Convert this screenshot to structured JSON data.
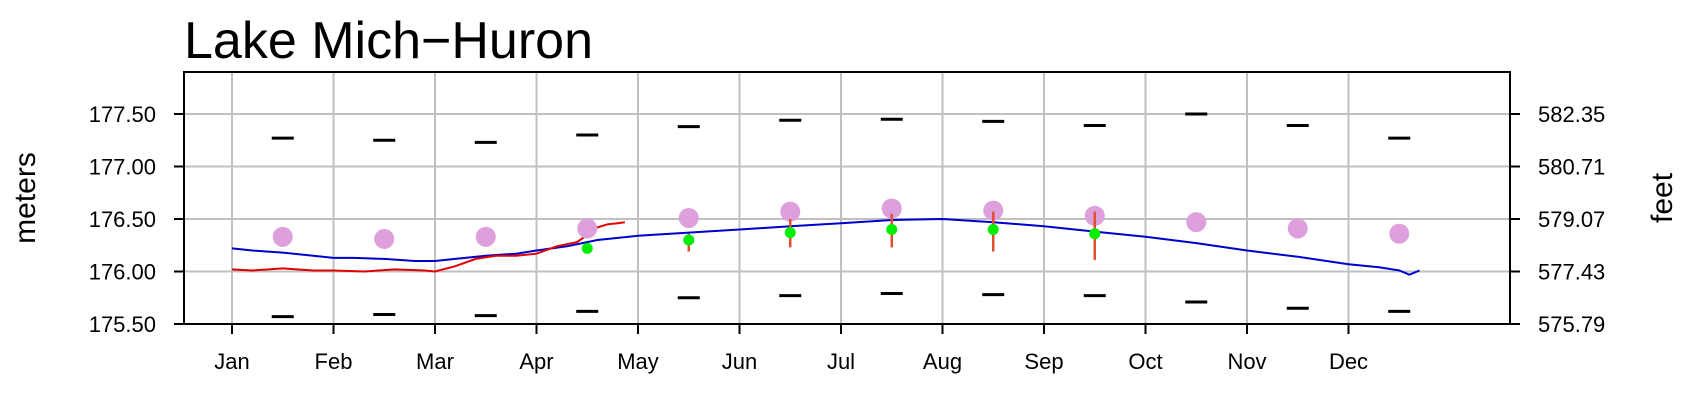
{
  "chart_data": {
    "type": "line",
    "title": "Lake Mich−Huron",
    "ylabel_left": "meters",
    "ylabel_right": "feet",
    "categories": [
      "Jan",
      "Feb",
      "Mar",
      "Apr",
      "May",
      "Jun",
      "Jul",
      "Aug",
      "Sep",
      "Oct",
      "Nov",
      "Dec"
    ],
    "ylim": [
      175.5,
      177.9
    ],
    "yticks_left": [
      "177.50",
      "177.00",
      "176.50",
      "176.00",
      "175.50"
    ],
    "yticks_right": [
      "582.35",
      "580.71",
      "579.07",
      "577.43",
      "575.79"
    ],
    "ytick_values": [
      177.5,
      177.0,
      176.5,
      176.0,
      175.5
    ],
    "grid": true,
    "colors": {
      "current_year": "#e00000",
      "previous_year": "#0000cc",
      "long_term_average": "#dda0dd",
      "forecast_point": "#00ee00",
      "forecast_range": "#e05030",
      "record": "#000000"
    },
    "series": [
      {
        "id": "previous_year",
        "x": [
          0,
          0.2,
          0.5,
          0.8,
          1.0,
          1.2,
          1.5,
          1.8,
          2.0,
          2.2,
          2.5,
          2.8,
          3.0,
          3.3,
          3.6,
          4.0,
          4.5,
          5.0,
          5.5,
          6.0,
          6.5,
          7.0,
          7.5,
          8.0,
          8.5,
          9.0,
          9.5,
          10.0,
          10.5,
          11.0,
          11.3,
          11.5,
          11.6,
          11.7
        ],
        "y": [
          176.22,
          176.2,
          176.18,
          176.15,
          176.13,
          176.13,
          176.12,
          176.1,
          176.1,
          176.12,
          176.15,
          176.17,
          176.2,
          176.24,
          176.3,
          176.34,
          176.37,
          176.4,
          176.43,
          176.46,
          176.49,
          176.5,
          176.47,
          176.43,
          176.38,
          176.33,
          176.27,
          176.2,
          176.14,
          176.07,
          176.04,
          176.01,
          175.97,
          176.01
        ]
      },
      {
        "id": "current_year",
        "x": [
          0,
          0.2,
          0.5,
          0.8,
          1.0,
          1.3,
          1.6,
          1.9,
          2.0,
          2.2,
          2.4,
          2.6,
          2.8,
          3.0,
          3.2,
          3.4,
          3.5,
          3.6,
          3.7,
          3.8,
          3.87
        ],
        "y": [
          176.02,
          176.01,
          176.03,
          176.01,
          176.01,
          176.0,
          176.02,
          176.01,
          176.0,
          176.05,
          176.12,
          176.15,
          176.15,
          176.17,
          176.24,
          176.28,
          176.35,
          176.42,
          176.45,
          176.46,
          176.47
        ]
      }
    ],
    "long_term_average": {
      "x": [
        0.5,
        1.5,
        2.5,
        3.5,
        4.5,
        5.5,
        6.5,
        7.5,
        8.5,
        9.5,
        10.5,
        11.5
      ],
      "y": [
        176.33,
        176.31,
        176.33,
        176.41,
        176.51,
        176.57,
        176.6,
        176.58,
        176.53,
        176.47,
        176.41,
        176.36
      ]
    },
    "record_high": {
      "x": [
        0.5,
        1.5,
        2.5,
        3.5,
        4.5,
        5.5,
        6.5,
        7.5,
        8.5,
        9.5,
        10.5,
        11.5
      ],
      "y": [
        177.27,
        177.25,
        177.23,
        177.3,
        177.38,
        177.44,
        177.45,
        177.43,
        177.39,
        177.5,
        177.39,
        177.27
      ]
    },
    "record_low": {
      "x": [
        0.5,
        1.5,
        2.5,
        3.5,
        4.5,
        5.5,
        6.5,
        7.5,
        8.5,
        9.5,
        10.5,
        11.5
      ],
      "y": [
        175.57,
        175.59,
        175.58,
        175.62,
        175.75,
        175.77,
        175.79,
        175.78,
        175.77,
        175.71,
        175.65,
        175.62
      ]
    },
    "forecast": {
      "x": [
        3.5,
        4.5,
        5.5,
        6.5,
        7.5,
        8.5
      ],
      "y": [
        176.22,
        176.3,
        176.37,
        176.4,
        176.4,
        176.36
      ],
      "low": [
        176.2,
        176.19,
        176.23,
        176.23,
        176.19,
        176.11
      ],
      "high": [
        176.25,
        176.36,
        176.5,
        176.55,
        176.57,
        176.57
      ]
    }
  }
}
